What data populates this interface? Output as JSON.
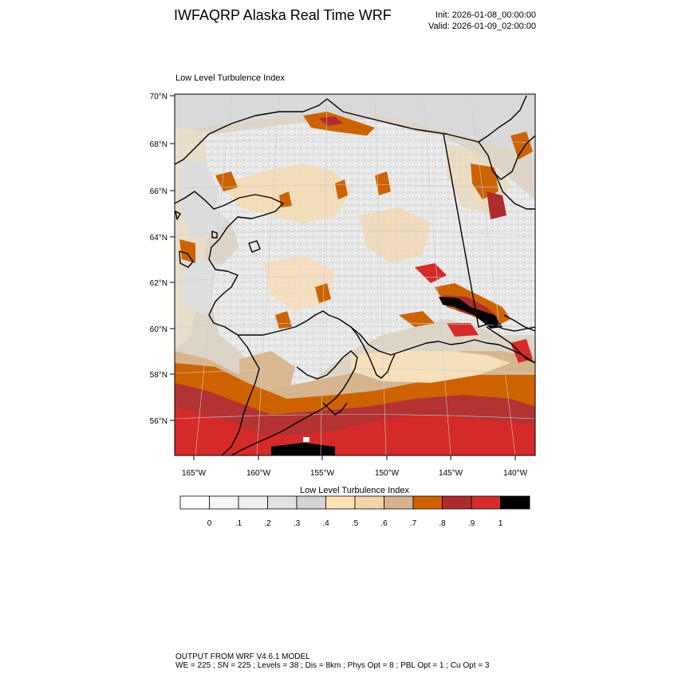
{
  "header": {
    "title": "IWFAQRP Alaska Real Time WRF",
    "init": "Init: 2026-01-08_00:00:00",
    "valid": "Valid: 2026-01-09_02:00:00"
  },
  "panel": {
    "field_title": "Low Level Turbulence Index"
  },
  "axes": {
    "lat_labels": [
      "70°N",
      "68°N",
      "66°N",
      "64°N",
      "62°N",
      "60°N",
      "58°N",
      "56°N"
    ],
    "lon_labels": [
      "165°W",
      "160°W",
      "155°W",
      "150°W",
      "145°W",
      "140°W"
    ]
  },
  "colorbar": {
    "title": "Low Level Turbulence Index",
    "tick_labels": [
      "0",
      ".1",
      ".2",
      ".3",
      ".4",
      ".5",
      ".6",
      ".7",
      ".8",
      ".9",
      "1"
    ],
    "colors": [
      "#ffffff",
      "#f7f7f7",
      "#efefef",
      "#e2e2e2",
      "#d3d3d3",
      "#ffe2b4",
      "#f5d4a8",
      "#d7b48e",
      "#cf6100",
      "#ad2d2d",
      "#d42b2b",
      "#000000"
    ]
  },
  "footer": {
    "line1": "OUTPUT FROM WRF V4.6.1 MODEL",
    "line2": "WE = 225 ; SN = 225 ; Levels = 38 ; Dis = 8km ; Phys Opt = 8 ; PBL Opt = 1 ; Cu Opt = 3"
  }
}
